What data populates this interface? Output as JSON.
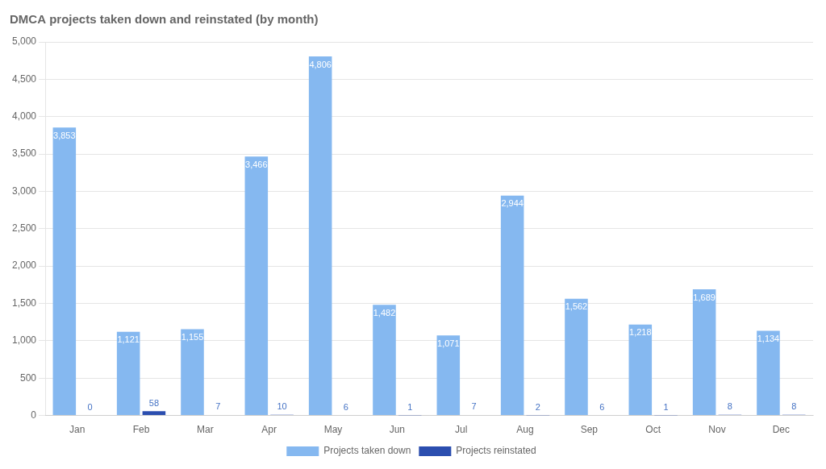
{
  "chart_data": {
    "type": "bar",
    "title": "DMCA projects taken down and reinstated (by month)",
    "categories": [
      "Jan",
      "Feb",
      "Mar",
      "Apr",
      "May",
      "Jun",
      "Jul",
      "Aug",
      "Sep",
      "Oct",
      "Nov",
      "Dec"
    ],
    "series": [
      {
        "name": "Projects taken down",
        "color": "#85B8F0",
        "values": [
          3853,
          1121,
          1155,
          3466,
          4806,
          1482,
          1071,
          2944,
          1562,
          1218,
          1689,
          1134
        ],
        "value_labels": [
          "3,853",
          "1,121",
          "1,155",
          "3,466",
          "4,806",
          "1,482",
          "1,071",
          "2,944",
          "1,562",
          "1,218",
          "1,689",
          "1,134"
        ]
      },
      {
        "name": "Projects reinstated",
        "color": "#2B4EAF",
        "values": [
          0,
          58,
          7,
          10,
          6,
          1,
          7,
          2,
          6,
          1,
          8,
          8
        ]
      }
    ],
    "ylim": [
      0,
      5000
    ],
    "yticks": [
      0,
      500,
      {
        "value": 1000,
        "label": "1,000"
      },
      {
        "value": 1500,
        "label": "1,500"
      },
      {
        "value": 2000,
        "label": "2,000"
      },
      {
        "value": 2500,
        "label": "2,500"
      },
      {
        "value": 3000,
        "label": "3,000"
      },
      {
        "value": 3500,
        "label": "3,500"
      },
      {
        "value": 4000,
        "label": "4,000"
      },
      {
        "value": 4500,
        "label": "4,500"
      },
      {
        "value": 5000,
        "label": "5,000"
      }
    ],
    "grid": true,
    "legend": "bottom",
    "data_labels": true
  }
}
